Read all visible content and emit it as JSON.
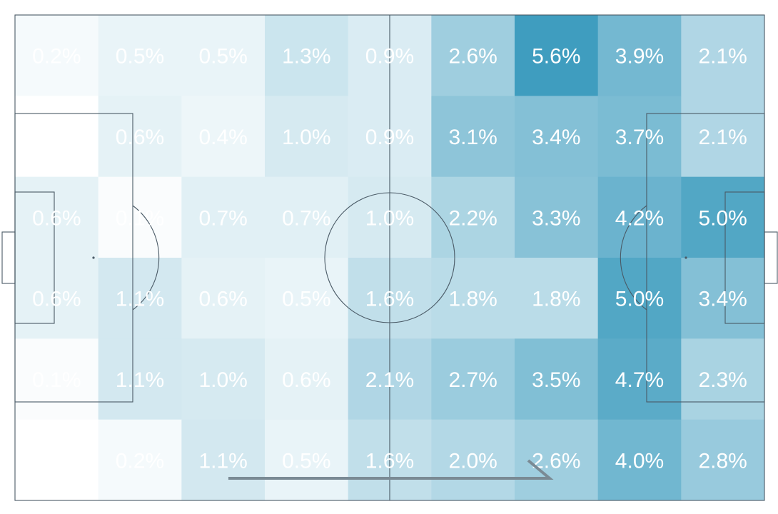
{
  "chart_data": {
    "type": "heatmap",
    "rows": 6,
    "cols": 9,
    "value_unit": "%",
    "values": [
      [
        0.2,
        0.5,
        0.5,
        1.3,
        0.9,
        2.6,
        5.6,
        3.9,
        2.1
      ],
      [
        0.0,
        0.6,
        0.4,
        1.0,
        0.9,
        3.1,
        3.4,
        3.7,
        2.1
      ],
      [
        0.6,
        0.1,
        0.7,
        0.7,
        1.0,
        2.2,
        3.3,
        4.2,
        5.0
      ],
      [
        0.6,
        1.1,
        0.6,
        0.5,
        1.6,
        1.8,
        1.8,
        5.0,
        3.4
      ],
      [
        0.1,
        1.1,
        1.0,
        0.6,
        2.1,
        2.7,
        3.5,
        4.7,
        2.3
      ],
      [
        0.0,
        0.2,
        1.1,
        0.5,
        1.6,
        2.0,
        2.6,
        4.0,
        2.8
      ]
    ],
    "labels": [
      [
        "0.2%",
        "0.5%",
        "0.5%",
        "1.3%",
        "0.9%",
        "2.6%",
        "5.6%",
        "3.9%",
        "2.1%"
      ],
      [
        "",
        "0.6%",
        "0.4%",
        "1.0%",
        "0.9%",
        "3.1%",
        "3.4%",
        "3.7%",
        "2.1%"
      ],
      [
        "0.6%",
        "0.1%",
        "0.7%",
        "0.7%",
        "1.0%",
        "2.2%",
        "3.3%",
        "4.2%",
        "5.0%"
      ],
      [
        "0.6%",
        "1.1%",
        "0.6%",
        "0.5%",
        "1.6%",
        "1.8%",
        "1.8%",
        "5.0%",
        "3.4%"
      ],
      [
        "0.1%",
        "1.1%",
        "1.0%",
        "0.6%",
        "2.1%",
        "2.7%",
        "3.5%",
        "4.7%",
        "2.3%"
      ],
      [
        "",
        "0.2%",
        "1.1%",
        "0.5%",
        "1.6%",
        "2.0%",
        "2.6%",
        "4.0%",
        "2.8%"
      ]
    ],
    "color_min": "#ffffff",
    "color_max": "#3f9dbf",
    "value_max": 5.6,
    "background": "football pitch",
    "attack_direction": "left-to-right"
  },
  "colors": {
    "pitch_line": "#4a5a66",
    "arrow": "#7a8a94",
    "label_text": "#ffffff"
  }
}
